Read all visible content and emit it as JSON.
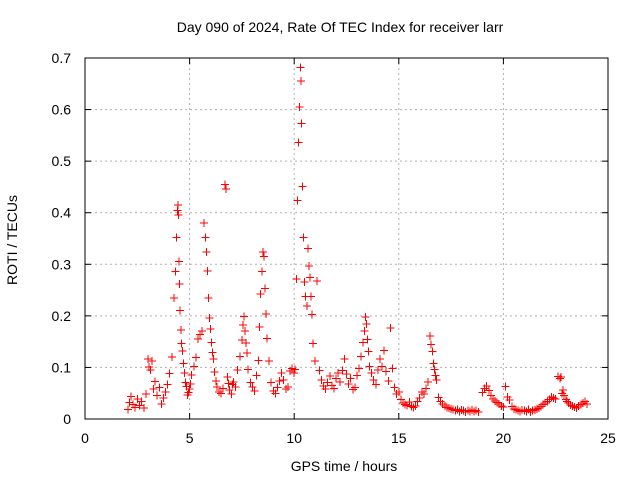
{
  "chart_data": {
    "type": "scatter",
    "title": "Day 090 of 2024, Rate Of TEC Index for receiver larr",
    "xlabel": "GPS time / hours",
    "ylabel": "ROTI / TECUs",
    "xlim": [
      0,
      25
    ],
    "ylim": [
      0,
      0.7
    ],
    "xticks": [
      0,
      5,
      10,
      15,
      20,
      25
    ],
    "yticks": [
      0,
      0.1,
      0.2,
      0.3,
      0.4,
      0.5,
      0.6,
      0.7
    ],
    "xtick_labels": [
      "0",
      "5",
      "10",
      "15",
      "20",
      "25"
    ],
    "ytick_labels": [
      "0",
      "0.1",
      "0.2",
      "0.3",
      "0.4",
      "0.5",
      "0.6",
      "0.7"
    ],
    "grid": true,
    "series": [
      {
        "name": "ROTI",
        "color": "#ff0000",
        "marker": "plus",
        "x": [
          2.05,
          2.12,
          2.2,
          2.3,
          2.4,
          2.5,
          2.6,
          2.7,
          2.82,
          2.92,
          3.0,
          3.05,
          3.12,
          3.2,
          3.28,
          3.35,
          3.45,
          3.55,
          3.65,
          3.75,
          3.85,
          3.95,
          4.05,
          4.15,
          4.25,
          4.32,
          4.38,
          4.42,
          4.45,
          4.48,
          4.5,
          4.52,
          4.55,
          4.58,
          4.62,
          4.66,
          4.7,
          4.75,
          4.8,
          4.85,
          4.9,
          4.95,
          5.0,
          5.05,
          5.1,
          5.2,
          5.3,
          5.4,
          5.5,
          5.6,
          5.7,
          5.75,
          5.8,
          5.85,
          5.9,
          5.95,
          6.0,
          6.05,
          6.1,
          6.15,
          6.2,
          6.25,
          6.3,
          6.4,
          6.5,
          6.6,
          6.7,
          6.75,
          6.8,
          6.85,
          6.9,
          7.0,
          7.05,
          7.1,
          7.2,
          7.3,
          7.4,
          7.5,
          7.55,
          7.6,
          7.65,
          7.7,
          7.75,
          7.8,
          7.9,
          8.0,
          8.1,
          8.2,
          8.3,
          8.35,
          8.4,
          8.45,
          8.5,
          8.55,
          8.6,
          8.65,
          8.7,
          8.8,
          8.9,
          9.0,
          9.1,
          9.2,
          9.3,
          9.4,
          9.5,
          9.6,
          9.7,
          9.8,
          9.9,
          10.0,
          10.05,
          10.1,
          10.15,
          10.2,
          10.25,
          10.3,
          10.33,
          10.36,
          10.4,
          10.45,
          10.5,
          10.55,
          10.6,
          10.65,
          10.7,
          10.75,
          10.8,
          10.85,
          10.9,
          11.0,
          11.1,
          11.2,
          11.3,
          11.4,
          11.5,
          11.6,
          11.7,
          11.8,
          11.9,
          12.0,
          12.1,
          12.2,
          12.3,
          12.4,
          12.5,
          12.6,
          12.7,
          12.8,
          12.9,
          13.0,
          13.1,
          13.2,
          13.3,
          13.35,
          13.4,
          13.45,
          13.5,
          13.55,
          13.6,
          13.7,
          13.8,
          13.9,
          14.0,
          14.1,
          14.2,
          14.3,
          14.4,
          14.5,
          14.6,
          14.7,
          14.8,
          14.9,
          15.0,
          15.1,
          15.2,
          15.3,
          15.4,
          15.5,
          15.6,
          15.7,
          15.8,
          15.9,
          16.0,
          16.1,
          16.2,
          16.3,
          16.4,
          16.5,
          16.55,
          16.6,
          16.65,
          16.7,
          16.75,
          16.8,
          16.9,
          17.0,
          17.1,
          17.2,
          17.3,
          17.4,
          17.5,
          17.6,
          17.7,
          17.8,
          17.9,
          18.0,
          18.1,
          18.2,
          18.3,
          18.4,
          18.5,
          18.6,
          18.7,
          18.8,
          19.0,
          19.1,
          19.2,
          19.3,
          19.4,
          19.5,
          19.6,
          19.7,
          19.8,
          19.9,
          20.0,
          20.1,
          20.2,
          20.3,
          20.4,
          20.5,
          20.6,
          20.7,
          20.8,
          20.9,
          21.0,
          21.1,
          21.2,
          21.3,
          21.4,
          21.5,
          21.6,
          21.7,
          21.8,
          21.9,
          22.0,
          22.1,
          22.2,
          22.3,
          22.4,
          22.5,
          22.6,
          22.7,
          22.75,
          22.8,
          22.85,
          22.9,
          23.0,
          23.05,
          23.1,
          23.2,
          23.3,
          23.4,
          23.5,
          23.6,
          23.7,
          23.8,
          23.9,
          24.0
        ],
        "y": [
          0.018,
          0.032,
          0.044,
          0.028,
          0.022,
          0.039,
          0.026,
          0.034,
          0.021,
          0.048,
          0.116,
          0.101,
          0.095,
          0.112,
          0.058,
          0.073,
          0.046,
          0.061,
          0.029,
          0.041,
          0.052,
          0.067,
          0.088,
          0.12,
          0.235,
          0.286,
          0.352,
          0.404,
          0.415,
          0.396,
          0.305,
          0.262,
          0.21,
          0.173,
          0.146,
          0.132,
          0.108,
          0.089,
          0.071,
          0.063,
          0.047,
          0.051,
          0.058,
          0.068,
          0.085,
          0.102,
          0.119,
          0.155,
          0.164,
          0.171,
          0.38,
          0.352,
          0.324,
          0.287,
          0.235,
          0.196,
          0.175,
          0.148,
          0.129,
          0.116,
          0.091,
          0.074,
          0.062,
          0.052,
          0.049,
          0.059,
          0.455,
          0.446,
          0.081,
          0.069,
          0.056,
          0.048,
          0.067,
          0.072,
          0.062,
          0.095,
          0.121,
          0.153,
          0.182,
          0.199,
          0.171,
          0.147,
          0.128,
          0.096,
          0.071,
          0.062,
          0.054,
          0.084,
          0.113,
          0.178,
          0.242,
          0.286,
          0.324,
          0.315,
          0.253,
          0.204,
          0.156,
          0.112,
          0.071,
          0.054,
          0.049,
          0.061,
          0.074,
          0.089,
          0.076,
          0.058,
          0.062,
          0.093,
          0.098,
          0.089,
          0.096,
          0.271,
          0.424,
          0.536,
          0.605,
          0.682,
          0.655,
          0.573,
          0.451,
          0.352,
          0.266,
          0.238,
          0.219,
          0.331,
          0.297,
          0.274,
          0.238,
          0.203,
          0.146,
          0.112,
          0.268,
          0.094,
          0.076,
          0.064,
          0.058,
          0.071,
          0.083,
          0.065,
          0.059,
          0.079,
          0.089,
          0.072,
          0.094,
          0.116,
          0.087,
          0.068,
          0.079,
          0.057,
          0.061,
          0.084,
          0.098,
          0.121,
          0.148,
          0.171,
          0.198,
          0.184,
          0.154,
          0.131,
          0.102,
          0.089,
          0.076,
          0.067,
          0.095,
          0.116,
          0.102,
          0.133,
          0.092,
          0.074,
          0.176,
          0.098,
          0.061,
          0.048,
          0.052,
          0.038,
          0.031,
          0.028,
          0.026,
          0.033,
          0.024,
          0.022,
          0.025,
          0.034,
          0.041,
          0.052,
          0.048,
          0.059,
          0.072,
          0.161,
          0.144,
          0.131,
          0.108,
          0.096,
          0.084,
          0.076,
          0.042,
          0.034,
          0.029,
          0.025,
          0.022,
          0.021,
          0.019,
          0.018,
          0.016,
          0.018,
          0.015,
          0.017,
          0.016,
          0.014,
          0.016,
          0.015,
          0.017,
          0.015,
          0.016,
          0.014,
          0.051,
          0.059,
          0.064,
          0.055,
          0.046,
          0.039,
          0.035,
          0.032,
          0.029,
          0.025,
          0.023,
          0.063,
          0.043,
          0.037,
          0.024,
          0.019,
          0.018,
          0.016,
          0.015,
          0.017,
          0.016,
          0.015,
          0.018,
          0.014,
          0.016,
          0.017,
          0.019,
          0.021,
          0.024,
          0.028,
          0.031,
          0.034,
          0.038,
          0.043,
          0.041,
          0.039,
          0.082,
          0.079,
          0.081,
          0.049,
          0.056,
          0.046,
          0.038,
          0.034,
          0.031,
          0.027,
          0.025,
          0.023,
          0.021,
          0.025,
          0.028,
          0.031,
          0.034,
          0.029
        ]
      }
    ]
  }
}
